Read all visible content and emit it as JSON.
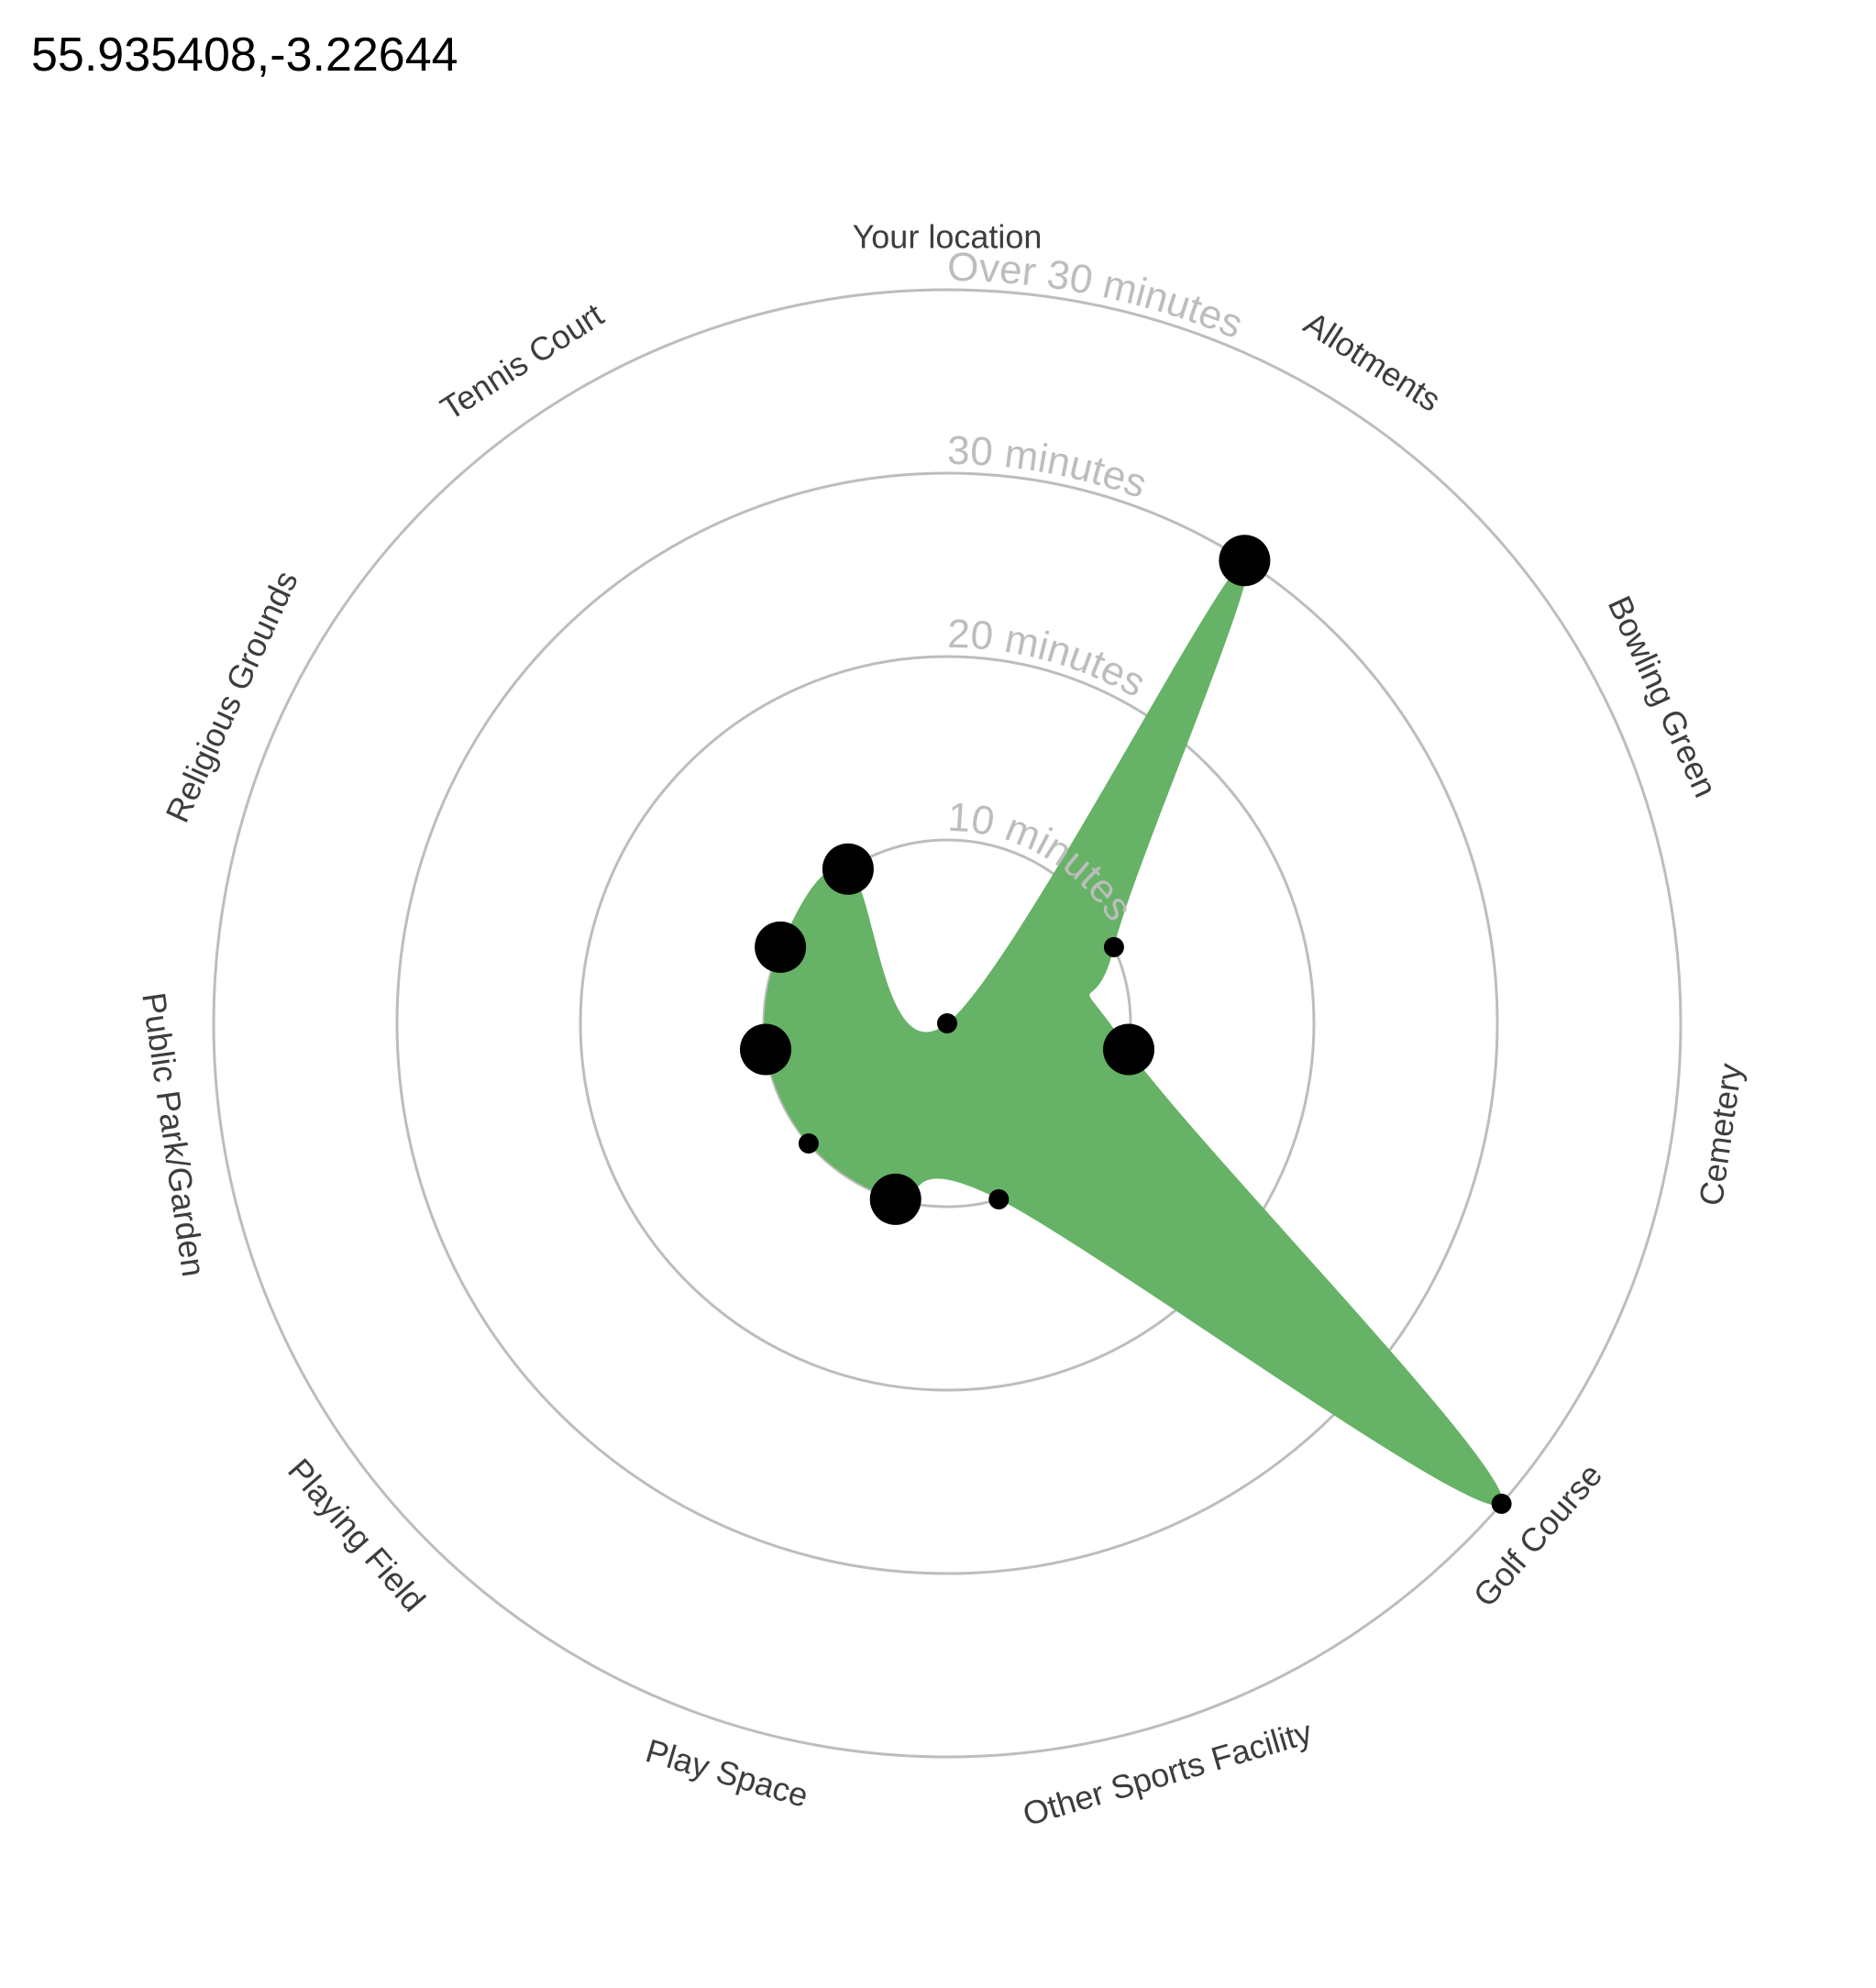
{
  "title": "55.935408,-3.22644",
  "chart_data": {
    "type": "radial",
    "title": "55.935408,-3.22644",
    "rings": [
      "10 minutes",
      "20 minutes",
      "30 minutes",
      "Over 30 minutes"
    ],
    "categories": [
      "Your location",
      "Allotments",
      "Bowling Green",
      "Cemetery",
      "Golf Course",
      "Other Sports Facility",
      "Play Space",
      "Playing Field",
      "Public Park/Garden",
      "Religious Grounds",
      "Tennis Court"
    ],
    "values": [
      0,
      30,
      10,
      10,
      40,
      10,
      10,
      10,
      10,
      10,
      10
    ],
    "marker_size": [
      1,
      3,
      1,
      3,
      1,
      1,
      3,
      1,
      3,
      3,
      3
    ],
    "rmax": 40,
    "fill_color": "#66b266",
    "ring_color": "#bdbdbd",
    "marker_color": "#000000"
  }
}
